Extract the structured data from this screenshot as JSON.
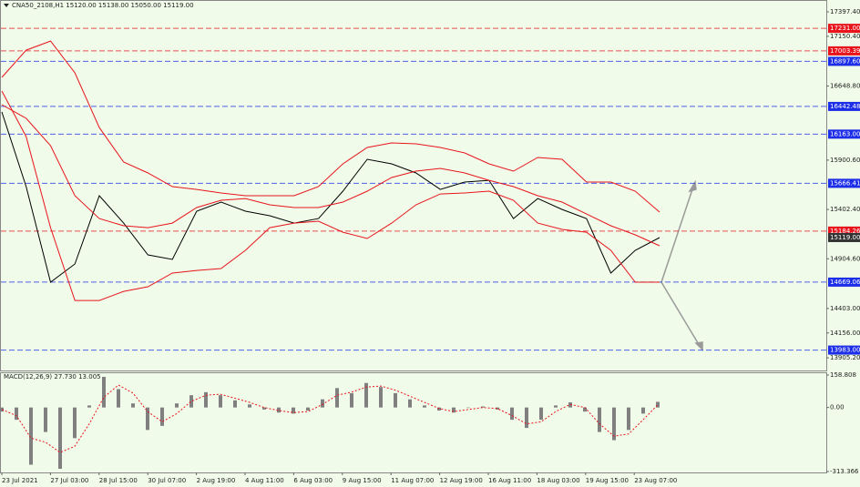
{
  "chart_data": [
    {
      "type": "line",
      "title": "CNA50_2108,H1  15120.00 15138.00 15050.00 15119.00",
      "series": [
        {
          "color": "#000000",
          "values": [
            16387,
            15633,
            14668,
            14852,
            15541,
            15265,
            14944,
            14898,
            15385,
            15477,
            15385,
            15339,
            15265,
            15311,
            15587,
            15909,
            15863,
            15771,
            15605,
            15679,
            15697,
            15311,
            15513,
            15403,
            15311,
            14760,
            14990,
            15119
          ]
        },
        {
          "color": "#e8141c",
          "values": [
            16736,
            17011,
            17103,
            16782,
            16230,
            15881,
            15771,
            15633,
            15605,
            15569,
            15541,
            15541,
            15541,
            15633,
            15863,
            16028,
            16074,
            16065,
            16028,
            15973,
            15863,
            15789,
            15927,
            15909,
            15679,
            15679,
            15587,
            15376
          ]
        },
        {
          "color": "#e8141c",
          "values": [
            16460,
            16322,
            16047,
            15541,
            15311,
            15238,
            15219,
            15265,
            15422,
            15495,
            15513,
            15449,
            15422,
            15422,
            15477,
            15587,
            15725,
            15789,
            15817,
            15771,
            15697,
            15633,
            15541,
            15477,
            15357,
            15238,
            15146,
            15036
          ]
        },
        {
          "color": "#e8141c",
          "values": [
            16598,
            16138,
            15219,
            14484,
            14484,
            14576,
            14622,
            14760,
            14787,
            14806,
            14990,
            15219,
            15265,
            15284,
            15173,
            15109,
            15265,
            15449,
            15559,
            15569,
            15587,
            15495,
            15265,
            15201,
            15173,
            14990,
            14668,
            14668
          ]
        }
      ],
      "ylim": [
        13777,
        17517
      ],
      "yticks": [
        {
          "value": 17397.4,
          "label": "17397.40"
        },
        {
          "value": 17150.4,
          "label": "17150.40"
        },
        {
          "value": 16648.8,
          "label": "16648.80"
        },
        {
          "value": 15900.6,
          "label": "15900.60"
        },
        {
          "value": 15402.4,
          "label": "15402.40"
        },
        {
          "value": 14904.6,
          "label": "14904.60"
        },
        {
          "value": 14403,
          "label": "14403.00"
        },
        {
          "value": 14156,
          "label": "14156.00"
        },
        {
          "value": 13905.2,
          "label": "13905.20"
        }
      ],
      "levels": [
        {
          "value": 17231,
          "label": "17231.00",
          "color": "#e8141c"
        },
        {
          "value": 17003.39,
          "label": "17003.39",
          "color": "#e8141c"
        },
        {
          "value": 16897.6,
          "label": "16897.60",
          "color": "#1c2ee8"
        },
        {
          "value": 16442.48,
          "label": "16442.48",
          "color": "#1c2ee8"
        },
        {
          "value": 16163,
          "label": "16163.00",
          "color": "#1c2ee8"
        },
        {
          "value": 15666.41,
          "label": "15666.41",
          "color": "#1c2ee8"
        },
        {
          "value": 15184.26,
          "label": "15184.26",
          "color": "#e8141c"
        },
        {
          "value": 14669.06,
          "label": "14669.06",
          "color": "#1c2ee8"
        },
        {
          "value": 13983,
          "label": "13983.00",
          "color": "#1c2ee8"
        }
      ],
      "last": {
        "value": 15119,
        "label": "15119.00",
        "color": "#333333"
      },
      "time_labels": [
        "23 Jul 2021",
        "27 Jul 03:00",
        "28 Jul 15:00",
        "30 Jul 07:00",
        "2 Aug 19:00",
        "4 Aug 11:00",
        "6 Aug 03:00",
        "9 Aug 15:00",
        "11 Aug 07:00",
        "12 Aug 19:00",
        "16 Aug 11:00",
        "18 Aug 03:00",
        "19 Aug 15:00",
        "23 Aug 07:00"
      ]
    },
    {
      "type": "bar",
      "title": "MACD(12,26,9) 27.730 13.005",
      "values": [
        -20,
        -60,
        -280,
        -120,
        -300,
        -150,
        10,
        150,
        90,
        20,
        -110,
        -90,
        20,
        60,
        75,
        60,
        35,
        15,
        -10,
        -25,
        -30,
        -15,
        40,
        95,
        70,
        120,
        100,
        70,
        40,
        10,
        -15,
        -25,
        0,
        5,
        -10,
        -60,
        -100,
        -60,
        10,
        25,
        -20,
        -120,
        -160,
        -110,
        -30,
        27.73
      ],
      "signal": [
        -10,
        -40,
        -150,
        -170,
        -220,
        -190,
        -80,
        50,
        110,
        70,
        -20,
        -70,
        -30,
        30,
        60,
        65,
        45,
        25,
        0,
        -15,
        -25,
        -20,
        15,
        60,
        75,
        100,
        105,
        85,
        55,
        25,
        -5,
        -20,
        -10,
        0,
        -5,
        -40,
        -80,
        -70,
        -20,
        15,
        0,
        -80,
        -140,
        -130,
        -60,
        13.005
      ],
      "color": "#808080",
      "signal_color": "#e8141c",
      "ylim": [
        -313.366,
        158.808
      ],
      "yticks": [
        158.808,
        {
          "value": 0,
          "label": "0.00"
        },
        -313.366
      ]
    }
  ]
}
